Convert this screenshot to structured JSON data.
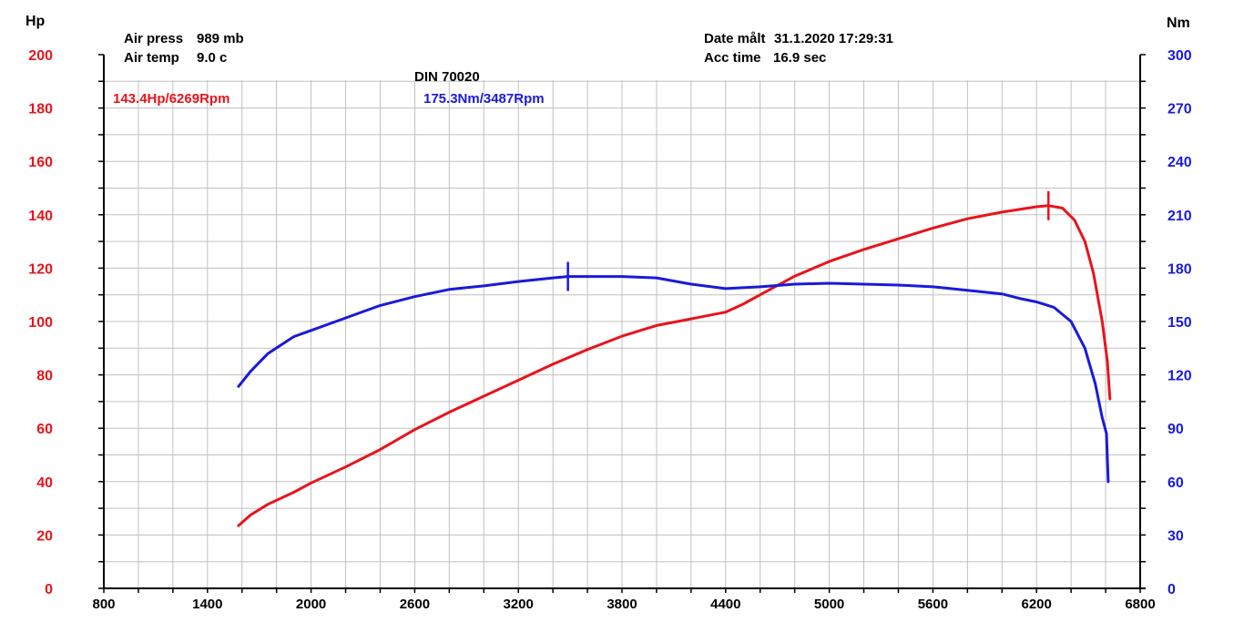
{
  "chart_data": {
    "type": "line",
    "title": "DIN 70020",
    "info": {
      "air_press": {
        "label": "Air press",
        "value": "989 mb"
      },
      "air_temp": {
        "label": "Air temp",
        "value": "9.0 c"
      },
      "date": {
        "label": "Date målt",
        "value": "31.1.2020 17:29:31"
      },
      "acc_time": {
        "label": "Acc time",
        "value": "16.9 sec"
      }
    },
    "peak_hp_label": "143.4Hp/6269Rpm",
    "peak_nm_label": "175.3Nm/3487Rpm",
    "peak_hp": {
      "rpm": 6269,
      "value": 143.4
    },
    "peak_nm": {
      "rpm": 3487,
      "value": 175.3
    },
    "y_left": {
      "label": "Hp",
      "range": [
        0,
        200
      ],
      "ticks": [
        "0",
        "20",
        "40",
        "60",
        "80",
        "100",
        "120",
        "140",
        "160",
        "180",
        "200"
      ]
    },
    "y_right": {
      "label": "Nm",
      "range": [
        0,
        300
      ],
      "ticks": [
        "0",
        "30",
        "60",
        "90",
        "120",
        "150",
        "180",
        "210",
        "240",
        "270",
        "300"
      ]
    },
    "x_axis": {
      "range": [
        800,
        6800
      ],
      "ticks": [
        "800",
        "1400",
        "2000",
        "2600",
        "3200",
        "3800",
        "4400",
        "5000",
        "5600",
        "6200",
        "6800"
      ]
    },
    "grid": true,
    "colors": {
      "hp": "#e8141c",
      "nm": "#1a1adb",
      "grid": "#c0c0c0",
      "axis": "#000000"
    },
    "series": [
      {
        "axis": "left",
        "color": "#e8141c",
        "points": [
          [
            1580,
            23.5
          ],
          [
            1650,
            27.5
          ],
          [
            1750,
            31.5
          ],
          [
            1900,
            36
          ],
          [
            2000,
            39.5
          ],
          [
            2200,
            45.5
          ],
          [
            2400,
            52
          ],
          [
            2600,
            59.5
          ],
          [
            2800,
            66
          ],
          [
            3000,
            72
          ],
          [
            3200,
            78
          ],
          [
            3400,
            84
          ],
          [
            3600,
            89.5
          ],
          [
            3800,
            94.5
          ],
          [
            4000,
            98.5
          ],
          [
            4200,
            101
          ],
          [
            4400,
            103.5
          ],
          [
            4500,
            106.5
          ],
          [
            4600,
            110
          ],
          [
            4800,
            117
          ],
          [
            5000,
            122.5
          ],
          [
            5200,
            127
          ],
          [
            5400,
            131
          ],
          [
            5600,
            135
          ],
          [
            5800,
            138.5
          ],
          [
            6000,
            141
          ],
          [
            6200,
            143
          ],
          [
            6269,
            143.4
          ],
          [
            6350,
            142.5
          ],
          [
            6420,
            138
          ],
          [
            6480,
            130
          ],
          [
            6530,
            118
          ],
          [
            6580,
            100
          ],
          [
            6610,
            85
          ],
          [
            6625,
            71
          ]
        ]
      },
      {
        "axis": "right",
        "color": "#1a1adb",
        "points": [
          [
            1580,
            113.5
          ],
          [
            1650,
            122
          ],
          [
            1750,
            132
          ],
          [
            1900,
            141.5
          ],
          [
            2000,
            145
          ],
          [
            2200,
            152
          ],
          [
            2400,
            159
          ],
          [
            2600,
            164
          ],
          [
            2800,
            168
          ],
          [
            3000,
            170
          ],
          [
            3200,
            172.5
          ],
          [
            3400,
            174.5
          ],
          [
            3487,
            175.3
          ],
          [
            3600,
            175.3
          ],
          [
            3800,
            175.3
          ],
          [
            4000,
            174.5
          ],
          [
            4200,
            171
          ],
          [
            4400,
            168.5
          ],
          [
            4600,
            169.5
          ],
          [
            4800,
            171
          ],
          [
            5000,
            171.5
          ],
          [
            5200,
            171
          ],
          [
            5400,
            170.5
          ],
          [
            5600,
            169.5
          ],
          [
            5800,
            167.5
          ],
          [
            6000,
            165.5
          ],
          [
            6100,
            163
          ],
          [
            6200,
            161
          ],
          [
            6300,
            158
          ],
          [
            6400,
            150
          ],
          [
            6480,
            135
          ],
          [
            6540,
            115
          ],
          [
            6580,
            96
          ],
          [
            6605,
            87
          ],
          [
            6615,
            60
          ]
        ]
      }
    ]
  }
}
